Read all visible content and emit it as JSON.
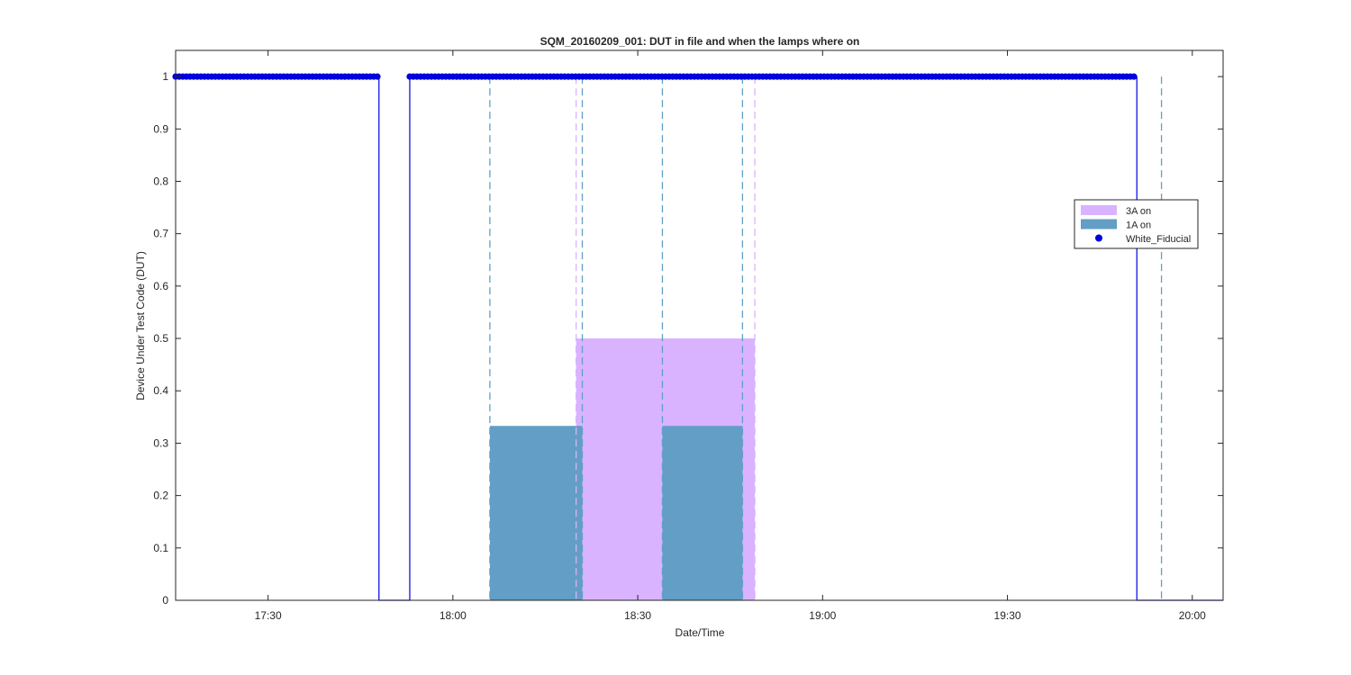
{
  "chart_data": {
    "type": "line",
    "title": "SQM_20160209_001: DUT in file and when the lamps where on",
    "xlabel": "Date/Time",
    "ylabel": "Device Under Test Code (DUT)",
    "x_unit": "time of day (HH:MM)",
    "xlim": [
      "17:15",
      "20:05"
    ],
    "ylim": [
      0,
      1.05
    ],
    "xticks": [
      "17:30",
      "18:00",
      "18:30",
      "19:00",
      "19:30",
      "20:00"
    ],
    "yticks": [
      "0",
      "0.1",
      "0.2",
      "0.3",
      "0.4",
      "0.5",
      "0.6",
      "0.7",
      "0.8",
      "0.9",
      "1"
    ],
    "grid": false,
    "legend": {
      "placement": "right",
      "entries": [
        {
          "label": "3A on",
          "color": "#d9b3ff",
          "kind": "patch"
        },
        {
          "label": "1A on",
          "color": "#629ec5",
          "kind": "patch"
        },
        {
          "label": "White_Fiducial",
          "color": "#0000dd",
          "kind": "marker"
        }
      ]
    },
    "areas": [
      {
        "name": "3A on",
        "color": "#d9b3ff",
        "start": "18:20",
        "end": "18:49",
        "value": 0.5
      },
      {
        "name": "1A on",
        "color": "#629ec5",
        "start": "18:06",
        "end": "18:21",
        "value": 0.333
      },
      {
        "name": "1A on",
        "color": "#629ec5",
        "start": "18:34",
        "end": "18:47",
        "value": 0.333
      }
    ],
    "dashed_lines": [
      {
        "x": "18:06",
        "color": "#629ec5"
      },
      {
        "x": "18:20",
        "color": "#d9b3ff"
      },
      {
        "x": "18:21",
        "color": "#629ec5"
      },
      {
        "x": "18:34",
        "color": "#629ec5"
      },
      {
        "x": "18:47",
        "color": "#629ec5"
      },
      {
        "x": "18:49",
        "color": "#d9b3ff"
      },
      {
        "x": "19:55",
        "color": "#629ec5"
      }
    ],
    "series": [
      {
        "name": "White_Fiducial",
        "color": "#0000dd",
        "step_line": [
          [
            "17:15",
            1
          ],
          [
            "17:48",
            1
          ],
          [
            "17:48",
            0
          ],
          [
            "17:53",
            0
          ],
          [
            "17:53",
            1
          ],
          [
            "19:51",
            1
          ],
          [
            "19:51",
            0
          ],
          [
            "20:05",
            0
          ]
        ],
        "marker_runs": [
          {
            "start": "17:15",
            "end": "17:48",
            "y": 1
          },
          {
            "start": "17:53",
            "end": "19:51",
            "y": 1
          }
        ]
      }
    ]
  }
}
